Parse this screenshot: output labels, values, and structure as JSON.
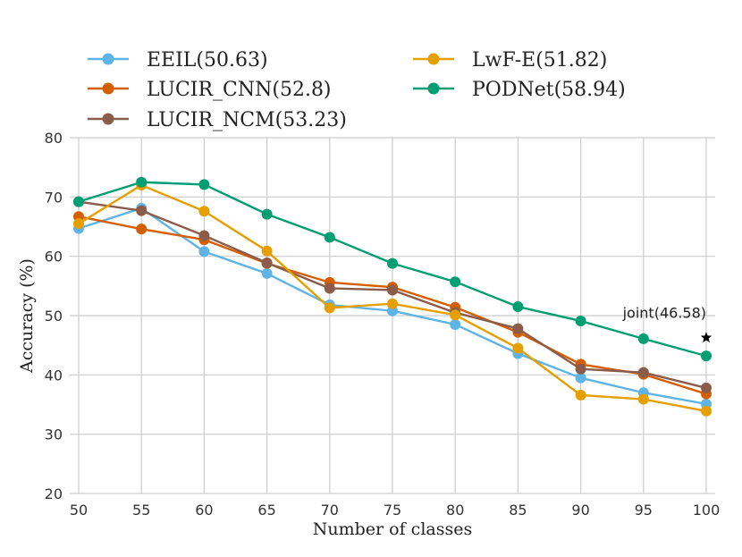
{
  "chart_data": {
    "type": "line",
    "title": "",
    "xlabel": "Number of classes",
    "ylabel": "Accuracy (%)",
    "x": [
      50,
      55,
      60,
      65,
      70,
      75,
      80,
      85,
      90,
      95,
      100
    ],
    "xlim": [
      50,
      100
    ],
    "ylim": [
      20,
      80
    ],
    "yticks": [
      20,
      30,
      40,
      50,
      60,
      70,
      80
    ],
    "grid": true,
    "legend_position": "top",
    "series": [
      {
        "name": "EEIL(50.63)",
        "color": "#5DB4E5",
        "values": [
          64.7,
          68.1,
          60.8,
          57.1,
          51.8,
          50.8,
          48.5,
          43.6,
          39.5,
          37.0,
          35.1
        ]
      },
      {
        "name": "LUCIR_CNN(52.8)",
        "color": "#D55E00",
        "values": [
          66.7,
          64.6,
          62.8,
          58.8,
          55.6,
          54.8,
          51.4,
          47.2,
          41.8,
          40.1,
          36.8
        ]
      },
      {
        "name": "LUCIR_NCM(53.23)",
        "color": "#8C5C4A",
        "values": [
          69.2,
          67.7,
          63.5,
          58.9,
          54.6,
          54.3,
          50.5,
          47.8,
          41.0,
          40.4,
          37.8
        ]
      },
      {
        "name": "LwF-E(51.82)",
        "color": "#E69F00",
        "values": [
          65.5,
          72.0,
          67.6,
          60.9,
          51.3,
          52.0,
          50.1,
          44.5,
          36.6,
          35.9,
          33.9
        ]
      },
      {
        "name": "PODNet(58.94)",
        "color": "#009E73",
        "values": [
          69.2,
          72.5,
          72.1,
          67.1,
          63.2,
          58.8,
          55.7,
          51.5,
          49.1,
          46.1,
          43.2
        ]
      }
    ],
    "annotations": [
      {
        "text": "joint(46.58)",
        "x": 100,
        "y": 46.58,
        "marker": "star"
      }
    ]
  }
}
